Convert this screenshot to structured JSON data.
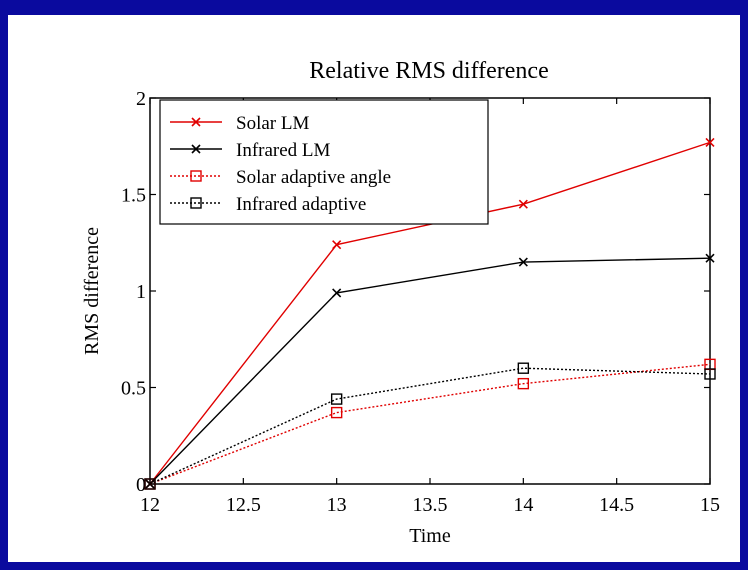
{
  "chart_data": {
    "type": "line",
    "title": "Relative RMS difference",
    "xlabel": "Time",
    "ylabel": "RMS difference",
    "xlim": [
      12,
      15
    ],
    "ylim": [
      0,
      2
    ],
    "xticks": [
      "12",
      "12.5",
      "13",
      "13.5",
      "14",
      "14.5",
      "15"
    ],
    "yticks": [
      "0",
      "0.5",
      "1",
      "1.5",
      "2"
    ],
    "legend_position": "top-left",
    "grid": false,
    "x": [
      12,
      13,
      14,
      15
    ],
    "series": [
      {
        "name": "Solar LM",
        "values": [
          0.0,
          1.24,
          1.45,
          1.77
        ],
        "color": "#e00000",
        "marker": "x",
        "dash": "solid"
      },
      {
        "name": "Infrared LM",
        "values": [
          0.0,
          0.99,
          1.15,
          1.17
        ],
        "color": "#000000",
        "marker": "x",
        "dash": "solid"
      },
      {
        "name": "Solar adaptive angle",
        "values": [
          0.0,
          0.37,
          0.52,
          0.62
        ],
        "color": "#e00000",
        "marker": "square",
        "dash": "dotted"
      },
      {
        "name": "Infrared adaptive",
        "values": [
          0.0,
          0.44,
          0.6,
          0.57
        ],
        "color": "#000000",
        "marker": "square",
        "dash": "dotted"
      }
    ]
  }
}
